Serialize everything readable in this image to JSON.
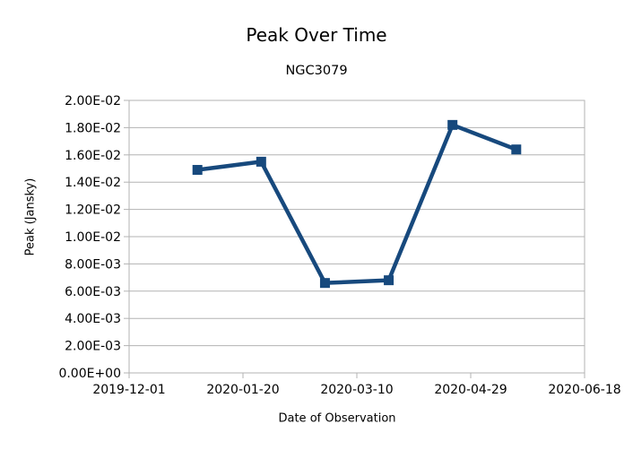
{
  "chart_data": {
    "type": "line",
    "title": "Peak Over Time",
    "subtitle": "NGC3079",
    "xlabel": "Date of Observation",
    "ylabel": "Peak (Jansky)",
    "x": [
      "2019-12-31",
      "2020-01-28",
      "2020-02-25",
      "2020-03-24",
      "2020-04-21",
      "2020-05-19"
    ],
    "series": [
      {
        "name": "Peak",
        "values": [
          0.0149,
          0.0155,
          0.0066,
          0.0068,
          0.0182,
          0.0164
        ]
      }
    ],
    "x_tick_labels": [
      "2019-12-01",
      "2020-01-20",
      "2020-03-10",
      "2020-04-29",
      "2020-06-18"
    ],
    "y_tick_labels": [
      "0.00E+00",
      "2.00E-03",
      "4.00E-03",
      "6.00E-03",
      "8.00E-03",
      "1.00E-02",
      "1.20E-02",
      "1.40E-02",
      "1.60E-02",
      "1.80E-02",
      "2.00E-02"
    ],
    "xlim": [
      "2019-12-01",
      "2020-06-18"
    ],
    "ylim": [
      0,
      0.02
    ],
    "grid": true,
    "legend": "none",
    "marker": "square"
  },
  "style": {
    "background": "#ffffff",
    "grid_color": "#b3b3b3",
    "axis_color": "#b3b3b3",
    "text_color": "#000000",
    "series_color": "#17497D"
  }
}
